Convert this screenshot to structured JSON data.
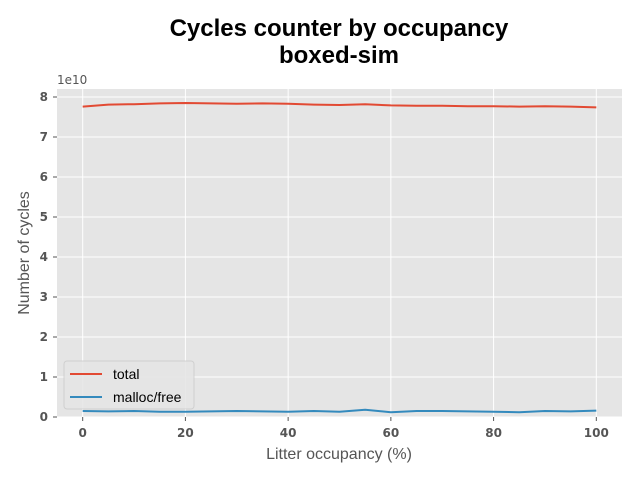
{
  "chart_data": {
    "type": "line",
    "title": "Cycles counter by occupancy",
    "subtitle": "boxed-sim",
    "xlabel": "Litter occupancy (%)",
    "ylabel": "Number of cycles",
    "y_offset_label": "1e10",
    "xlim": [
      -5,
      105
    ],
    "ylim": [
      0,
      8.2
    ],
    "x_ticks": [
      0,
      20,
      40,
      60,
      80,
      100
    ],
    "y_ticks": [
      0,
      1,
      2,
      3,
      4,
      5,
      6,
      7,
      8
    ],
    "grid": true,
    "legend": "lower-left",
    "x": [
      0,
      5,
      10,
      15,
      20,
      25,
      30,
      35,
      40,
      45,
      50,
      55,
      60,
      65,
      70,
      75,
      80,
      85,
      90,
      95,
      100
    ],
    "series": [
      {
        "name": "total",
        "color": "#E24A33",
        "values": [
          7.76,
          7.81,
          7.82,
          7.84,
          7.85,
          7.84,
          7.83,
          7.84,
          7.83,
          7.81,
          7.8,
          7.82,
          7.79,
          7.78,
          7.78,
          7.77,
          7.77,
          7.76,
          7.77,
          7.76,
          7.74
        ]
      },
      {
        "name": "malloc/free",
        "color": "#348ABD",
        "values": [
          0.15,
          0.14,
          0.15,
          0.13,
          0.13,
          0.14,
          0.15,
          0.14,
          0.13,
          0.15,
          0.13,
          0.18,
          0.12,
          0.15,
          0.15,
          0.14,
          0.13,
          0.12,
          0.15,
          0.14,
          0.16
        ]
      }
    ]
  }
}
